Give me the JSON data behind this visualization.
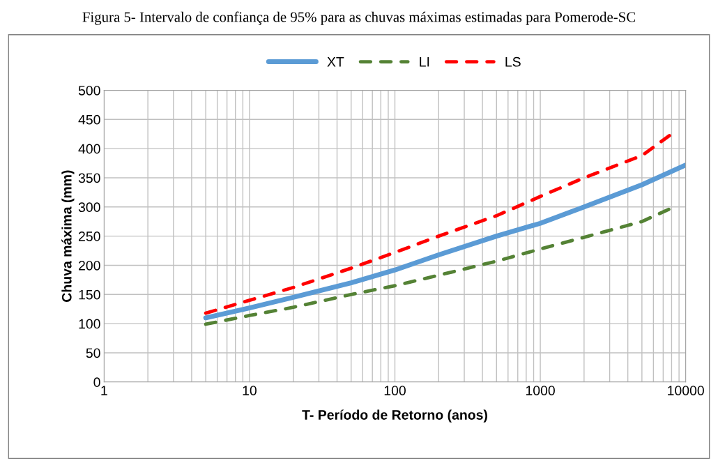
{
  "chart_data": {
    "type": "line",
    "title": "Figura 5- Intervalo de confiança de 95% para as chuvas máximas estimadas para Pomerode-SC",
    "xlabel": "T- Período de Retorno (anos)",
    "ylabel": "Chuva máxima (mm)",
    "log": "x",
    "grid": true,
    "legend": "top",
    "marker": "none",
    "xlim": [
      1,
      10000
    ],
    "xticks": [
      1,
      10,
      100,
      1000,
      10000
    ],
    "ylim": [
      0,
      500
    ],
    "yticks": [
      0,
      50,
      100,
      150,
      200,
      250,
      300,
      350,
      400,
      450,
      500
    ],
    "series": [
      {
        "name": "XT",
        "color": "#5b9bd5",
        "line_style": "solid",
        "x": [
          5,
          10,
          20,
          50,
          100,
          200,
          500,
          1000,
          2000,
          5000,
          10000
        ],
        "values": [
          110,
          127,
          145,
          170,
          192,
          218,
          250,
          272,
          300,
          338,
          372
        ]
      },
      {
        "name": "LI",
        "color": "#548235",
        "line_style": "dashed",
        "x": [
          5,
          10,
          20,
          50,
          100,
          200,
          500,
          1000,
          2000,
          5000,
          8000
        ],
        "values": [
          99,
          114,
          128,
          150,
          165,
          183,
          207,
          228,
          248,
          275,
          298
        ]
      },
      {
        "name": "LS",
        "color": "#ff0000",
        "line_style": "dashed",
        "x": [
          5,
          10,
          20,
          50,
          100,
          200,
          500,
          1000,
          2000,
          5000,
          8000
        ],
        "values": [
          118,
          140,
          162,
          195,
          222,
          250,
          285,
          318,
          350,
          388,
          425
        ]
      }
    ]
  }
}
